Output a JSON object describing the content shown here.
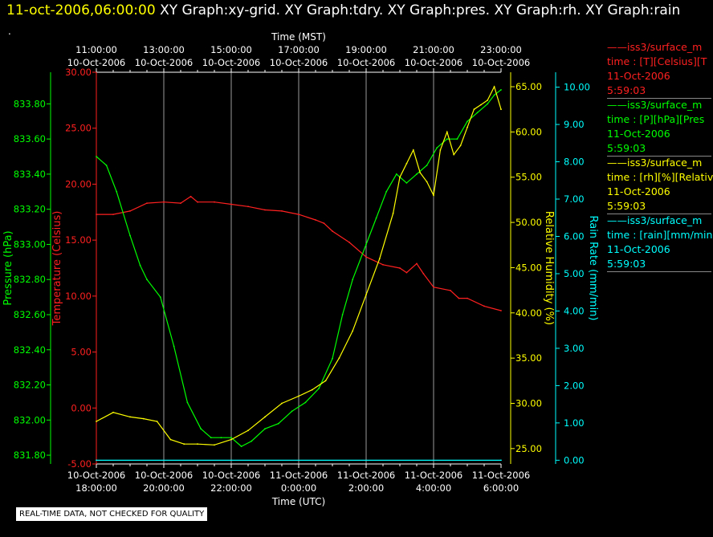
{
  "title": {
    "time": "11-oct-2006,06:00:00",
    "graphs": "XY Graph:xy-grid.  XY Graph:tdry.  XY Graph:pres.  XY Graph:rh.  XY Graph:rain"
  },
  "dot": ".",
  "notice": "REAL-TIME DATA, NOT CHECKED FOR QUALITY",
  "legend": [
    {
      "line1": "iss3/surface_m",
      "line2": "time : [T][Celsius][T",
      "date": "11-Oct-2006",
      "time": "5:59:03",
      "color": "#ff2020"
    },
    {
      "line1": "iss3/surface_m",
      "line2": "time : [P][hPa][Pres",
      "date": "11-Oct-2006",
      "time": "5:59:03",
      "color": "#00ff00"
    },
    {
      "line1": "iss3/surface_m",
      "line2": "time : [rh][%][Relativ",
      "date": "11-Oct-2006",
      "time": "5:59:03",
      "color": "#ffff00"
    },
    {
      "line1": "iss3/surface_m",
      "line2": "time : [rain][mm/min",
      "date": "11-Oct-2006",
      "time": "5:59:03",
      "color": "#00ffff"
    }
  ],
  "chart_data": {
    "type": "line",
    "x_top_label": "Time (MST)",
    "x_bottom_label": "Time (UTC)",
    "x_top_ticks": [
      [
        "11:00:00",
        "10-Oct-2006"
      ],
      [
        "13:00:00",
        "10-Oct-2006"
      ],
      [
        "15:00:00",
        "10-Oct-2006"
      ],
      [
        "17:00:00",
        "10-Oct-2006"
      ],
      [
        "19:00:00",
        "10-Oct-2006"
      ],
      [
        "21:00:00",
        "10-Oct-2006"
      ],
      [
        "23:00:00",
        "10-Oct-2006"
      ]
    ],
    "x_bottom_ticks": [
      [
        "10-Oct-2006",
        "18:00:00"
      ],
      [
        "10-Oct-2006",
        "20:00:00"
      ],
      [
        "10-Oct-2006",
        "22:00:00"
      ],
      [
        "11-Oct-2006",
        "0:00:00"
      ],
      [
        "11-Oct-2006",
        "2:00:00"
      ],
      [
        "11-Oct-2006",
        "4:00:00"
      ],
      [
        "11-Oct-2006",
        "6:00:00"
      ]
    ],
    "xlim_utc": [
      "10-Oct-2006 18:00:00",
      "11-Oct-2006 06:00:00"
    ],
    "grid": true,
    "axes": {
      "pressure": {
        "label": "Pressure (hPa)",
        "color": "#00ff00",
        "ylim": [
          831.75,
          833.98
        ],
        "ticks": [
          "831.80",
          "832.00",
          "832.20",
          "832.40",
          "832.60",
          "832.80",
          "833.00",
          "833.20",
          "833.40",
          "833.60",
          "833.80"
        ]
      },
      "temperature": {
        "label": "Temperature (Celsius)",
        "color": "#ff2020",
        "ylim": [
          -5,
          30
        ],
        "ticks": [
          "-5.00",
          "0.00",
          "5.00",
          "10.00",
          "15.00",
          "20.00",
          "25.00",
          "30.00"
        ]
      },
      "rh": {
        "label": "Relative Humidity (%)",
        "color": "#ffff00",
        "ylim": [
          23.3,
          66.6
        ],
        "ticks": [
          "25.00",
          "30.00",
          "35.00",
          "40.00",
          "45.00",
          "50.00",
          "55.00",
          "60.00",
          "65.00"
        ]
      },
      "rain": {
        "label": "Rain Rate (mm/min)",
        "color": "#00ffff",
        "ylim": [
          -0.1,
          10.4
        ],
        "ticks": [
          "0.00",
          "1.00",
          "2.00",
          "3.00",
          "4.00",
          "5.00",
          "6.00",
          "7.00",
          "8.00",
          "9.00",
          "10.00"
        ]
      }
    },
    "series": [
      {
        "name": "iss3/surface_m T",
        "axis": "temperature",
        "color": "#ff2020",
        "x": [
          18.0,
          18.5,
          19.0,
          19.5,
          20.0,
          20.5,
          20.8,
          21.0,
          21.5,
          22.0,
          22.5,
          23.0,
          23.5,
          24.0,
          24.5,
          24.75,
          25.0,
          25.5,
          26.0,
          26.5,
          27.0,
          27.2,
          27.5,
          27.7,
          28.0,
          28.5,
          28.75,
          29.0,
          29.5,
          30.0
        ],
        "y": [
          17.3,
          17.3,
          17.6,
          18.3,
          18.4,
          18.3,
          18.9,
          18.4,
          18.4,
          18.2,
          18.0,
          17.7,
          17.6,
          17.3,
          16.8,
          16.5,
          15.8,
          14.8,
          13.5,
          12.8,
          12.5,
          12.1,
          12.9,
          12.0,
          10.8,
          10.5,
          9.8,
          9.8,
          9.1,
          8.7
        ]
      },
      {
        "name": "iss3/surface_m P",
        "axis": "pressure",
        "color": "#00ff00",
        "x": [
          18.0,
          18.3,
          18.6,
          19.0,
          19.3,
          19.5,
          19.9,
          20.3,
          20.7,
          21.1,
          21.4,
          21.7,
          22.0,
          22.3,
          22.6,
          23.0,
          23.4,
          23.8,
          24.2,
          24.6,
          25.0,
          25.3,
          25.6,
          26.0,
          26.3,
          26.6,
          26.9,
          27.2,
          27.5,
          27.8,
          28.1,
          28.4,
          28.7,
          29.0,
          29.3,
          29.6,
          29.8,
          30.0
        ],
        "y": [
          833.5,
          833.45,
          833.3,
          833.05,
          832.88,
          832.8,
          832.7,
          832.42,
          832.1,
          831.95,
          831.9,
          831.9,
          831.9,
          831.85,
          831.88,
          831.95,
          831.98,
          832.05,
          832.1,
          832.18,
          832.35,
          832.6,
          832.8,
          833.0,
          833.15,
          833.3,
          833.4,
          833.35,
          833.4,
          833.45,
          833.55,
          833.6,
          833.6,
          833.7,
          833.75,
          833.8,
          833.85,
          833.88
        ]
      },
      {
        "name": "iss3/surface_m rh",
        "axis": "rh",
        "color": "#ffff00",
        "x": [
          18.0,
          18.5,
          19.0,
          19.4,
          19.8,
          20.2,
          20.6,
          21.0,
          21.5,
          22.0,
          22.5,
          23.0,
          23.5,
          24.0,
          24.4,
          24.8,
          25.2,
          25.6,
          26.0,
          26.4,
          26.8,
          27.0,
          27.2,
          27.4,
          27.6,
          27.8,
          28.0,
          28.2,
          28.4,
          28.6,
          28.8,
          29.0,
          29.2,
          29.4,
          29.6,
          29.8,
          30.0
        ],
        "y": [
          28.0,
          29.0,
          28.5,
          28.3,
          28.0,
          26.0,
          25.5,
          25.5,
          25.4,
          26.0,
          27.0,
          28.5,
          30.0,
          30.8,
          31.5,
          32.5,
          35.0,
          38.0,
          42.0,
          46.0,
          51.0,
          55.0,
          56.5,
          58.0,
          55.5,
          54.5,
          53.0,
          58.0,
          60.0,
          57.5,
          58.5,
          60.5,
          62.5,
          63.0,
          63.5,
          65.0,
          62.5
        ]
      },
      {
        "name": "iss3/surface_m rain",
        "axis": "rain",
        "color": "#00ffff",
        "x": [
          18.0,
          30.0
        ],
        "y": [
          0.0,
          0.0
        ]
      }
    ]
  }
}
